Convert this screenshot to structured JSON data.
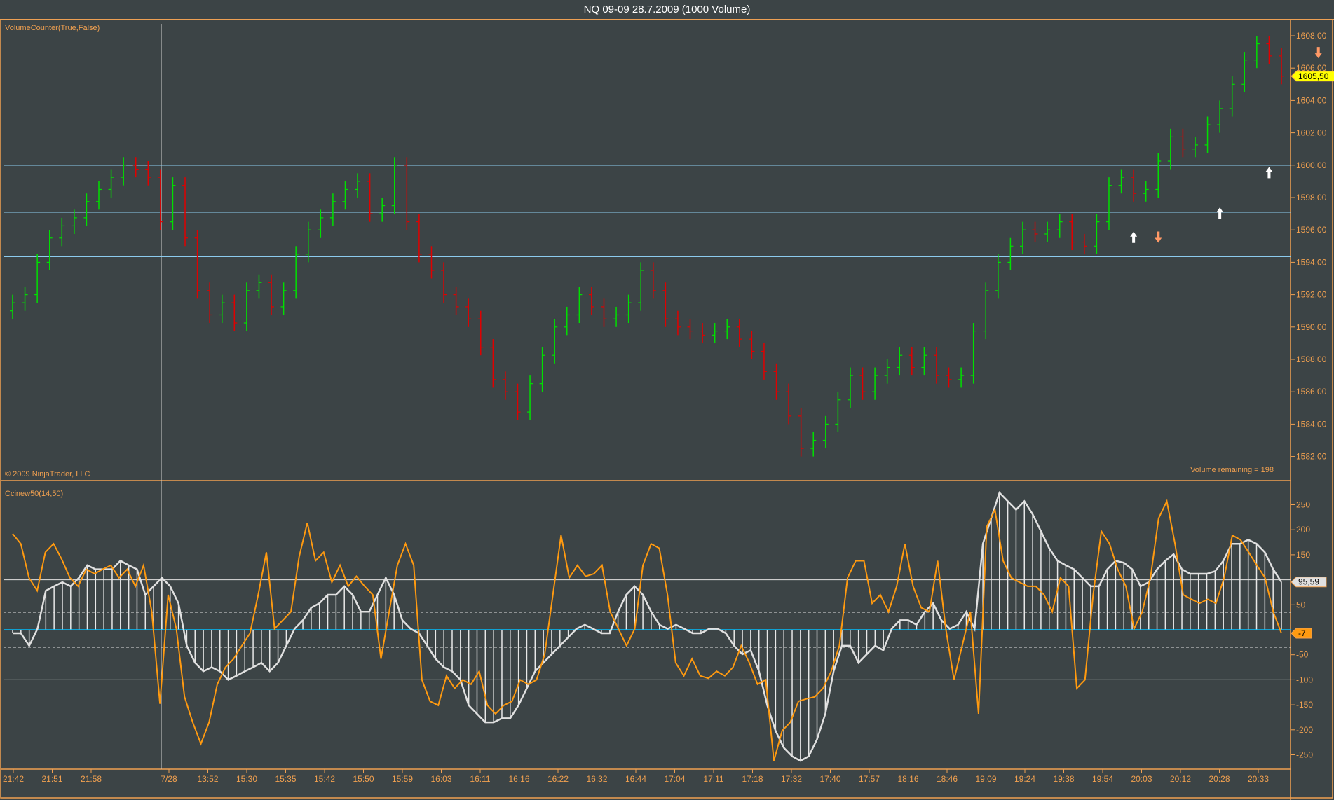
{
  "window": {
    "title": "NQ 09-09  28.7.2009 (1000 Volume)"
  },
  "price_panel": {
    "indicator_label": "VolumeCounter(True,False)",
    "copyright": "© 2009 NinjaTrader, LLC",
    "volume_remaining": "Volume remaining = 198",
    "last_price_badge": "1605,50",
    "y_ticks": [
      "1608,00",
      "1606,00",
      "1604,00",
      "1602,00",
      "1600,00",
      "1598,00",
      "1596,00",
      "1594,00",
      "1592,00",
      "1590,00",
      "1588,00",
      "1586,00",
      "1584,00",
      "1582,00"
    ]
  },
  "cci_panel": {
    "indicator_label": "Ccinew50(14,50)",
    "badge_slow": "95,59",
    "badge_fast": "-7",
    "y_ticks": [
      "250",
      "200",
      "150",
      "50",
      "-50",
      "-100",
      "-150",
      "-200",
      "-250"
    ]
  },
  "x_axis": {
    "labels": [
      "21:42",
      "21:51",
      "21:58",
      "",
      "7/28",
      "13:52",
      "15:30",
      "15:35",
      "15:42",
      "15:50",
      "15:59",
      "16:03",
      "16:11",
      "16:16",
      "16:22",
      "16:32",
      "16:44",
      "17:04",
      "17:11",
      "17:18",
      "17:32",
      "17:40",
      "17:57",
      "18:16",
      "18:46",
      "19:09",
      "19:24",
      "19:38",
      "19:54",
      "20:03",
      "20:12",
      "20:28",
      "20:33"
    ]
  },
  "colors": {
    "background": "#3c4446",
    "axis": "#f0a050",
    "up_bar": "#00e000",
    "down_bar": "#e00000",
    "level_line": "#8ccbee",
    "zero_line": "#00bfff",
    "cci_slow": "#e0e0e0",
    "cci_fast": "#ff9a10",
    "price_badge": "#ffff00"
  },
  "chart_data": [
    {
      "type": "bar",
      "subtype": "ohlc-price",
      "ylim": [
        1581,
        1609
      ],
      "y_tick_step": 2,
      "horizontal_levels": [
        1600,
        1597.1,
        1594.35
      ],
      "closes": [
        1591.5,
        1592,
        1594,
        1595.5,
        1596.25,
        1596.75,
        1597.75,
        1598.5,
        1599.25,
        1600,
        1599.75,
        1599.25,
        1596.5,
        1598.75,
        1595.5,
        1592.25,
        1590.75,
        1591.5,
        1590.25,
        1592.25,
        1592.75,
        1591.25,
        1592.25,
        1594.5,
        1596,
        1596.75,
        1597.75,
        1598.5,
        1599,
        1597,
        1597.5,
        1600,
        1596.5,
        1594.5,
        1593.5,
        1592,
        1591.25,
        1590.5,
        1588.75,
        1586.75,
        1586,
        1584.75,
        1586.5,
        1588.25,
        1590,
        1590.75,
        1592,
        1591.25,
        1590.5,
        1590.75,
        1591.5,
        1593.5,
        1592.25,
        1590.5,
        1590,
        1589.75,
        1589.5,
        1589.75,
        1590,
        1589.25,
        1588.5,
        1587.25,
        1586,
        1584.5,
        1582.5,
        1583,
        1584,
        1585.5,
        1587,
        1586,
        1587,
        1587.5,
        1588.25,
        1587.5,
        1588.25,
        1587,
        1586.75,
        1587,
        1589.75,
        1592.25,
        1594,
        1595,
        1596,
        1595.75,
        1596,
        1596.5,
        1595.25,
        1595,
        1596.5,
        1598.75,
        1599.25,
        1598.25,
        1598.5,
        1600.25,
        1601.75,
        1601,
        1601.25,
        1602.5,
        1603.5,
        1605,
        1606.5,
        1607.5,
        1606.75,
        1605.5
      ],
      "markers": [
        {
          "type": "buy-arrow",
          "bar": 91,
          "price": 1595.5
        },
        {
          "type": "sell-arrow",
          "bar": 93,
          "price": 1595.6
        },
        {
          "type": "buy-arrow",
          "bar": 98,
          "price": 1597
        },
        {
          "type": "buy-arrow",
          "bar": 102,
          "price": 1599.5
        },
        {
          "type": "sell-arrow",
          "bar": 106,
          "price": 1607
        }
      ]
    },
    {
      "type": "line",
      "subtype": "cci-with-histogram",
      "ylim": [
        -270,
        290
      ],
      "reference_lines": {
        "upper": 100,
        "lower": -100,
        "zero": 0,
        "dashed": [
          35,
          -35
        ]
      },
      "series": [
        {
          "values": [
            -7,
            -7,
            -32,
            2,
            78,
            87,
            95,
            87,
            104,
            129,
            121,
            121,
            121,
            138,
            129,
            121,
            70,
            87,
            104,
            87,
            53,
            -32,
            -66,
            -83,
            -75,
            -83,
            -100,
            -92,
            -83,
            -75,
            -66,
            -83,
            -66,
            -32,
            2,
            19,
            44,
            53,
            70,
            70,
            87,
            70,
            36,
            36,
            70,
            104,
            70,
            19,
            2,
            -7,
            -32,
            -58,
            -75,
            -83,
            -100,
            -151,
            -168,
            -185,
            -185,
            -177,
            -177,
            -151,
            -117,
            -83,
            -66,
            -49,
            -32,
            -15,
            2,
            10,
            2,
            -7,
            -7,
            36,
            70,
            87,
            70,
            36,
            10,
            2,
            10,
            2,
            -7,
            -7,
            2,
            2,
            -7,
            -32,
            -49,
            -41,
            -83,
            -151,
            -202,
            -236,
            -253,
            -262,
            -253,
            -219,
            -168,
            -83,
            -32,
            -32,
            -66,
            -49,
            -32,
            -41,
            2,
            19,
            19,
            10,
            36,
            53,
            19,
            2,
            10,
            36,
            2,
            172,
            223,
            274,
            257,
            240,
            257,
            231,
            197,
            163,
            138,
            129,
            121,
            104,
            87,
            87,
            121,
            138,
            134,
            121,
            87,
            95,
            121,
            138,
            151,
            121,
            112,
            112,
            112,
            117,
            138,
            172,
            172,
            180,
            172,
            155,
            121,
            95.59
          ]
        },
        {
          "values": [
            192,
            172,
            104,
            78,
            155,
            172,
            141,
            104,
            87,
            121,
            112,
            121,
            129,
            104,
            121,
            87,
            129,
            36,
            -148,
            70,
            2,
            -134,
            -185,
            -228,
            -185,
            -109,
            -75,
            -58,
            -32,
            -7,
            70,
            155,
            2,
            19,
            36,
            146,
            214,
            138,
            155,
            95,
            129,
            87,
            107,
            87,
            70,
            -58,
            36,
            129,
            172,
            129,
            -100,
            -143,
            -151,
            -92,
            -117,
            -100,
            -109,
            -83,
            -151,
            -168,
            -151,
            -143,
            -100,
            -109,
            -100,
            -49,
            70,
            189,
            104,
            129,
            107,
            112,
            129,
            36,
            2,
            -32,
            2,
            129,
            172,
            163,
            70,
            -66,
            -92,
            -58,
            -92,
            -97,
            -83,
            -92,
            -75,
            -32,
            -66,
            -109,
            -100,
            -262,
            -202,
            -185,
            -143,
            -138,
            -134,
            -117,
            -83,
            -32,
            104,
            138,
            138,
            53,
            70,
            36,
            87,
            172,
            87,
            44,
            36,
            138,
            2,
            -100,
            -32,
            36,
            -168,
            206,
            240,
            138,
            104,
            95,
            87,
            87,
            70,
            36,
            104,
            87,
            -117,
            -100,
            70,
            197,
            172,
            121,
            87,
            2,
            36,
            104,
            223,
            257,
            172,
            70,
            61,
            53,
            61,
            53,
            104,
            189,
            180,
            155,
            129,
            104,
            36,
            -7
          ]
        }
      ]
    }
  ]
}
